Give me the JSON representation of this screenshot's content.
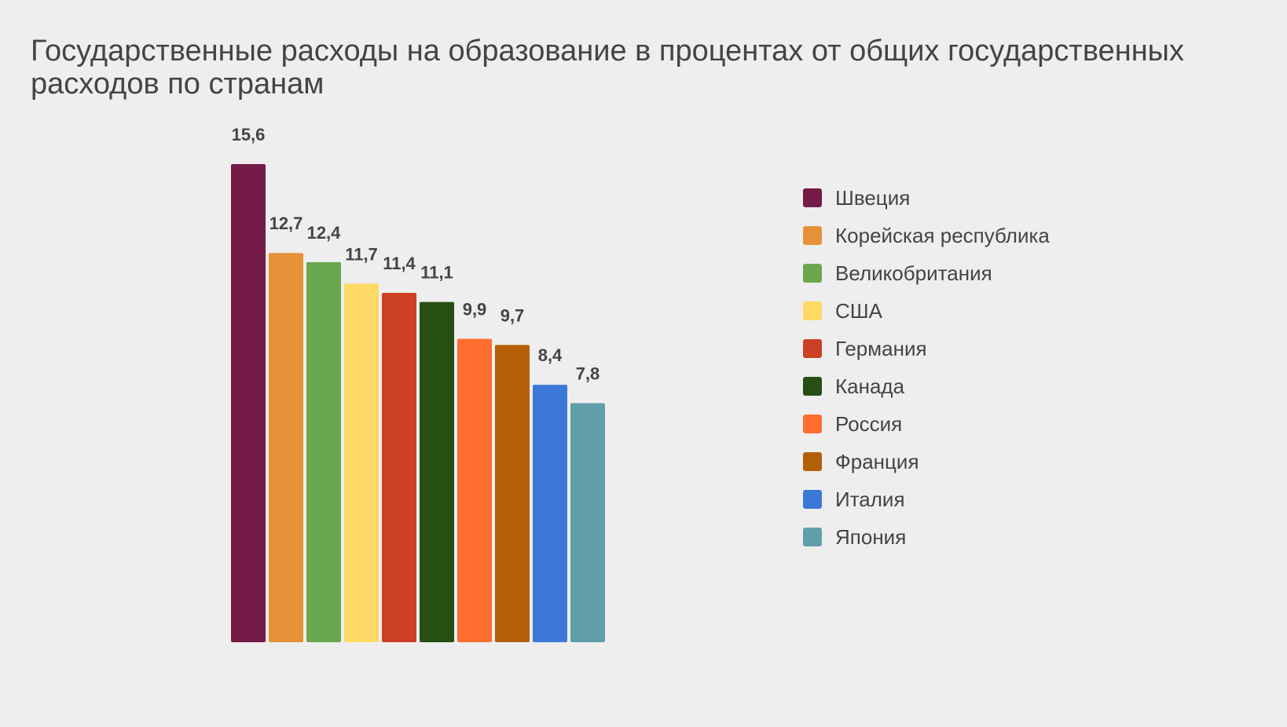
{
  "chart_data": {
    "type": "bar",
    "title": "Государственные расходы на образование в процентах от общих государственных расходов по странам",
    "categories": [
      "Швеция",
      "Корейская республика",
      "Великобритания",
      "США",
      "Германия",
      "Канада",
      "Россия",
      "Франция",
      "Италия",
      "Япония"
    ],
    "values": [
      15.6,
      12.7,
      12.4,
      11.7,
      11.4,
      11.1,
      9.9,
      9.7,
      8.4,
      7.8
    ],
    "value_labels": [
      "15,6",
      "12,7",
      "12,4",
      "11,7",
      "11,4",
      "11,1",
      "9,9",
      "9,7",
      "8,4",
      "7,8"
    ],
    "colors": [
      "#741b47",
      "#e69138",
      "#6aa84f",
      "#ffd966",
      "#cc4125",
      "#274e13",
      "#ff6d31",
      "#b45f06",
      "#3c78d8",
      "#609fa9"
    ],
    "xlabel": "",
    "ylabel": "",
    "ylim": [
      0,
      15.6
    ],
    "grid": false,
    "axes_visible": false,
    "legend_position": "right"
  }
}
